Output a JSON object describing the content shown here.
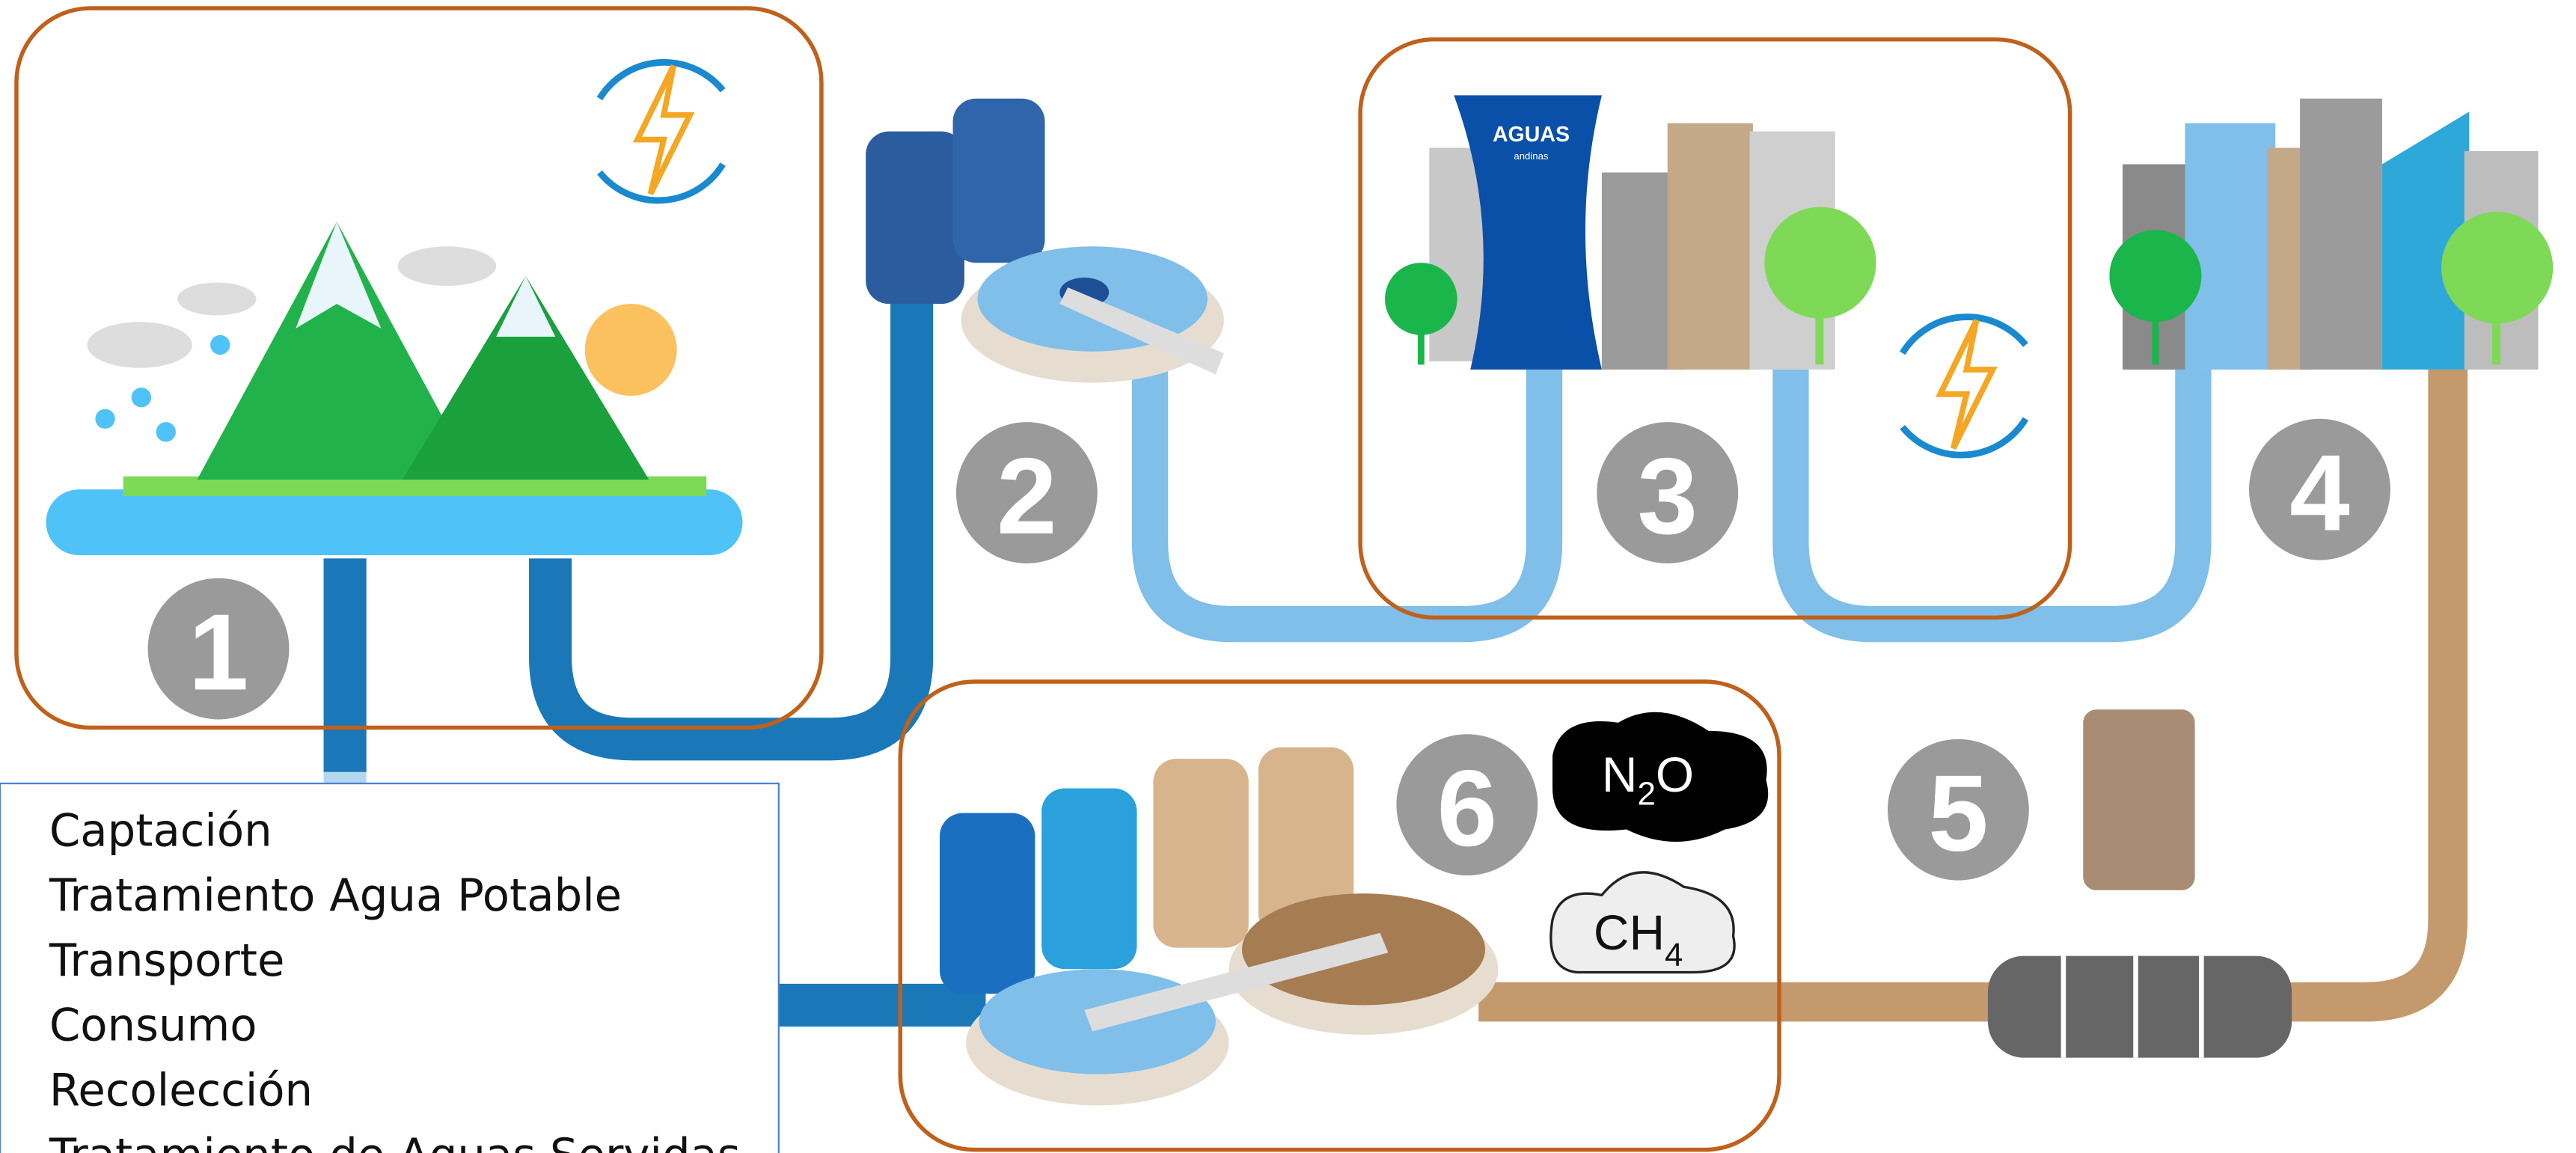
{
  "steps": [
    "1",
    "2",
    "3",
    "4",
    "5",
    "6"
  ],
  "logo": {
    "name": "AGUAS",
    "sub": "andinas"
  },
  "gases": [
    {
      "base": "N",
      "sub": "2",
      "end": "O"
    },
    {
      "base": "CH",
      "sub": "4"
    }
  ],
  "legend": {
    "items": [
      "Captación",
      "Tratamiento Agua Potable",
      "Transporte",
      "Consumo",
      "Recolección",
      "Tratamiento de Aguas Servidas"
    ]
  }
}
